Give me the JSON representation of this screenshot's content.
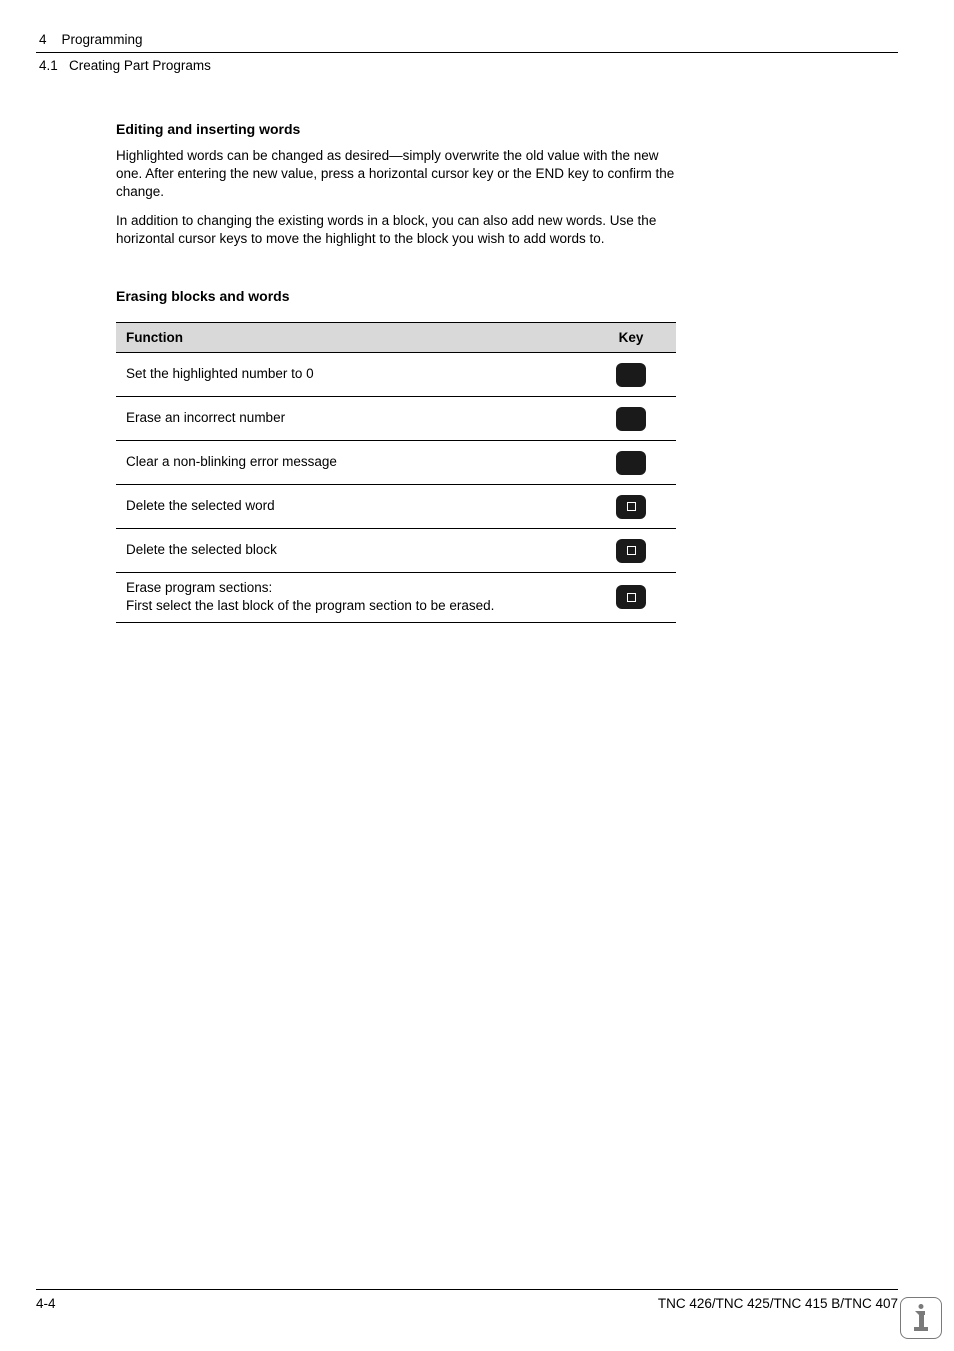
{
  "header": {
    "chapter_num": "4",
    "chapter_title": "Programming",
    "section_num": "4.1",
    "section_title": "Creating Part Programs"
  },
  "content": {
    "section1_title": "Editing and inserting words",
    "paragraph1": "Highlighted words can be changed as desired—simply overwrite the old value with the new one. After entering the new value, press a horizontal cursor key or the END key to confirm the change.",
    "paragraph2": "In addition to changing the existing words in a block, you can also add new words. Use the horizontal cursor keys to move the highlight to the block you wish to add words to.",
    "section2_title": "Erasing blocks and words"
  },
  "table": {
    "header_function": "Function",
    "header_key": "Key",
    "rows": [
      {
        "function": "Set the highlighted number to 0",
        "has_square": false
      },
      {
        "function": "Erase an incorrect number",
        "has_square": false
      },
      {
        "function": "Clear a non-blinking error message",
        "has_square": false
      },
      {
        "function": "Delete the selected word",
        "has_square": true
      },
      {
        "function": "Delete the selected block",
        "has_square": true
      },
      {
        "function": "Erase program sections:\nFirst select the last block of the program section to be erased.",
        "has_square": true
      }
    ]
  },
  "footer": {
    "page_num": "4-4",
    "product": "TNC 426/TNC 425/TNC 415 B/TNC 407"
  },
  "colors": {
    "text": "#000000",
    "background": "#ffffff",
    "table_header_bg": "#d9d9d9",
    "key_button": "#1a1a1a",
    "badge_border": "#7a7a7a"
  },
  "typography": {
    "body_fontsize": 13.5,
    "title_fontsize": 14,
    "font_family": "Arial, Helvetica, sans-serif"
  }
}
